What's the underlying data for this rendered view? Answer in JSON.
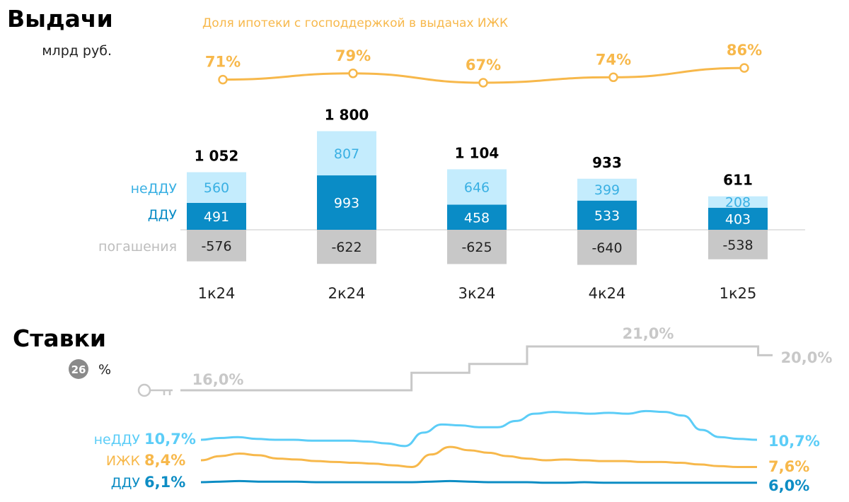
{
  "issuance": {
    "title": "Выдачи",
    "unit": "млрд руб.",
    "row_labels": {
      "non_escrow": "неДДУ",
      "escrow": "ДДУ",
      "repayments": "погашения"
    },
    "colors": {
      "non_escrow": "#c4ecfd",
      "escrow": "#0a8cc6",
      "repayments": "#c8c8c8",
      "text_light": "#3ab0e3",
      "text_dark": "#ffffff",
      "label_grey": "#bdbdbd"
    }
  },
  "subsidized_share": {
    "title": "Доля ипотеки с господдержкой в выдачах ИЖК",
    "color": "#f7b84b"
  },
  "rates": {
    "title": "Ставки",
    "badge": "26",
    "unit": "%",
    "key_icon": "key-icon",
    "key_color": "#c8c8c8",
    "series_colors": {
      "non_escrow": "#5ccdf7",
      "ijk": "#f7b84b",
      "escrow": "#0d8dc4"
    }
  },
  "chart_data": [
    {
      "type": "bar",
      "stacked": true,
      "categories": [
        "1к24",
        "2к24",
        "3к24",
        "4к24",
        "1к25"
      ],
      "series": [
        {
          "name": "неДДУ",
          "values": [
            560,
            807,
            646,
            399,
            208
          ]
        },
        {
          "name": "ДДУ",
          "values": [
            491,
            993,
            458,
            533,
            403
          ]
        },
        {
          "name": "погашения",
          "values": [
            -576,
            -622,
            -625,
            -640,
            -538
          ]
        }
      ],
      "totals": [
        "1 052",
        "1 800",
        "1 104",
        "933",
        "611"
      ],
      "title": "Выдачи",
      "ylabel": "млрд руб."
    },
    {
      "type": "line",
      "categories": [
        "1к24",
        "2к24",
        "3к24",
        "4к24",
        "1к25"
      ],
      "series": [
        {
          "values": [
            71,
            79,
            67,
            74,
            86
          ]
        }
      ],
      "labels": [
        "71%",
        "79%",
        "67%",
        "74%",
        "86%"
      ],
      "title": "Доля ипотеки с господдержкой в выдачах ИЖК"
    },
    {
      "type": "line",
      "title": "Ставки",
      "ylabel": "%",
      "ylim": [
        5,
        22
      ],
      "series": [
        {
          "name": "key",
          "style": "step",
          "values": [
            16,
            16,
            16,
            16,
            16,
            16,
            16,
            16,
            16,
            16,
            16,
            16,
            16,
            16,
            16,
            16,
            16,
            18,
            18,
            18,
            18,
            19,
            19,
            19,
            19,
            21,
            21,
            21,
            21,
            21,
            21,
            21,
            21,
            21,
            21,
            21,
            21,
            21,
            21,
            21,
            21,
            20
          ],
          "start_label": "16,0%",
          "peak_label": "21,0%",
          "end_label": "20,0%"
        },
        {
          "name": "неДДУ",
          "values": [
            10.7,
            10.9,
            11.0,
            10.8,
            10.7,
            10.7,
            10.6,
            10.6,
            10.6,
            10.5,
            10.3,
            10.0,
            11.5,
            12.4,
            12.3,
            12.1,
            12.1,
            12.8,
            13.6,
            13.8,
            13.7,
            13.6,
            13.7,
            13.6,
            13.9,
            13.8,
            13.4,
            11.8,
            11.0,
            10.8,
            10.7
          ],
          "start_label": "10,7%",
          "end_label": "10,7%"
        },
        {
          "name": "ИЖК",
          "values": [
            8.4,
            8.9,
            9.2,
            9.0,
            8.6,
            8.5,
            8.3,
            8.2,
            8.1,
            8.0,
            7.8,
            7.6,
            9.1,
            10.0,
            9.6,
            9.3,
            8.9,
            8.6,
            8.4,
            8.5,
            8.4,
            8.3,
            8.3,
            8.2,
            8.2,
            8.1,
            7.9,
            7.7,
            7.6,
            7.6
          ],
          "start_label": "8,4%",
          "end_label": "7,6%"
        },
        {
          "name": "ДДУ",
          "values": [
            6.1,
            6.2,
            6.3,
            6.2,
            6.2,
            6.2,
            6.1,
            6.1,
            6.1,
            6.1,
            6.1,
            6.1,
            6.2,
            6.3,
            6.2,
            6.1,
            6.1,
            6.1,
            6.0,
            6.0,
            6.1,
            6.0,
            6.0,
            6.0,
            6.0,
            6.0,
            6.0,
            6.0,
            6.0,
            6.0
          ],
          "start_label": "6,1%",
          "end_label": "6,0%"
        }
      ]
    }
  ]
}
